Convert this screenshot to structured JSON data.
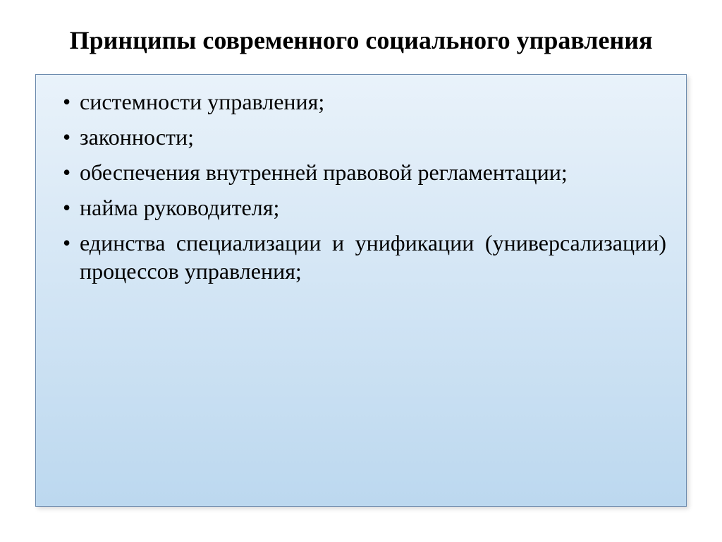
{
  "slide": {
    "title": "Принципы современного социального управления",
    "title_fontsize": 36,
    "title_color": "#000000",
    "bullets": [
      {
        "text": "системности управления;",
        "justify": false
      },
      {
        "text": "законности;",
        "justify": false
      },
      {
        "text": "обеспечения внутренней правовой регламентации;",
        "justify": true
      },
      {
        "text": "найма руководителя;",
        "justify": false
      },
      {
        "text": "единства специализации и унификации (универсализации) процессов управления;",
        "justify": true
      }
    ],
    "bullet_fontsize": 32,
    "bullet_color": "#000000",
    "box_border_color": "#6b8aad",
    "box_bg_top": "#e9f2fa",
    "box_bg_bottom": "#bcd8ef",
    "background_color": "#ffffff"
  }
}
